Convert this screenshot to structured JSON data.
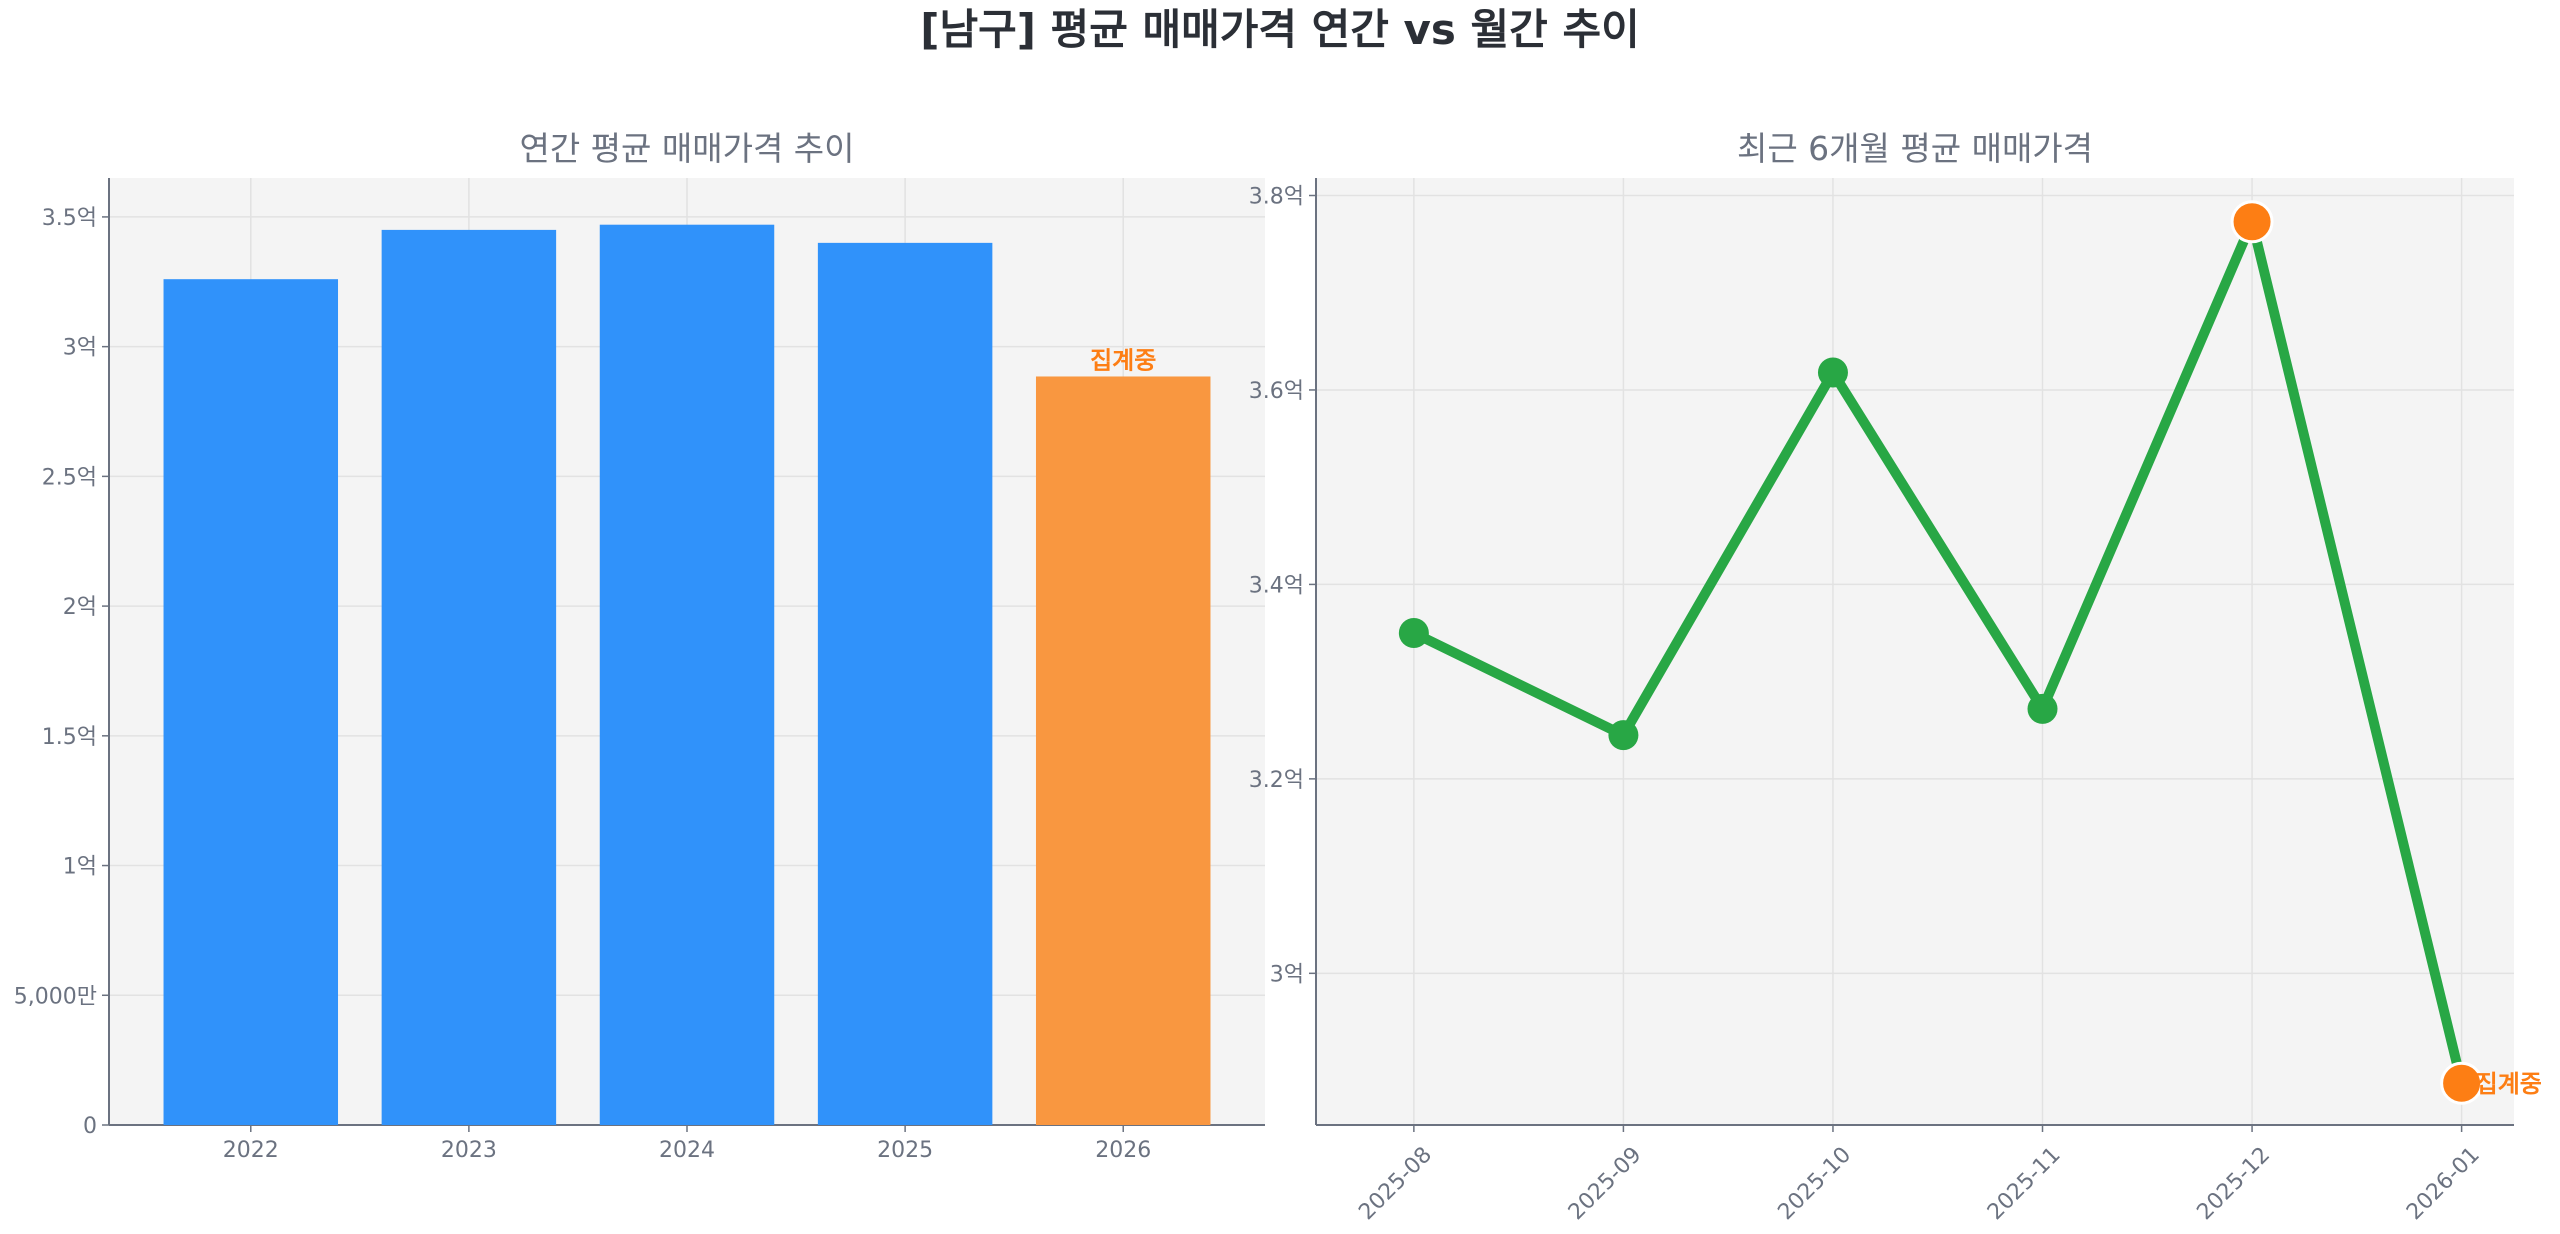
{
  "title": "[남구] 평균 매매가격 연간 vs 월간 추이",
  "chart_data": [
    {
      "type": "bar",
      "title": "연간 평균 매매가격 추이",
      "xlabel": "",
      "ylabel": "",
      "categories": [
        "2022",
        "2023",
        "2024",
        "2025",
        "2026"
      ],
      "values": [
        3.26,
        3.45,
        3.47,
        3.4,
        2.885
      ],
      "unit": "억",
      "ylim": [
        0,
        3.65
      ],
      "yticks": [
        0,
        0.5,
        1,
        1.5,
        2,
        2.5,
        3,
        3.5
      ],
      "ytick_labels": [
        "0",
        "5,000만",
        "1억",
        "1.5억",
        "2억",
        "2.5억",
        "3억",
        "3.5억"
      ],
      "grid": true,
      "colors": {
        "normal": "#3092fa",
        "in_progress": "#f99740"
      },
      "in_progress_index": 4,
      "annotation": "집계중"
    },
    {
      "type": "line",
      "title": "최근 6개월 평균 매매가격",
      "xlabel": "",
      "ylabel": "",
      "categories": [
        "2025-08",
        "2025-09",
        "2025-10",
        "2025-11",
        "2025-12",
        "2026-01"
      ],
      "values": [
        3.35,
        3.245,
        3.618,
        3.272,
        3.773,
        2.887
      ],
      "unit": "억",
      "ylim": [
        2.844,
        3.818
      ],
      "yticks": [
        3.0,
        3.2,
        3.4,
        3.6,
        3.8
      ],
      "ytick_labels": [
        "3억",
        "3.2억",
        "3.4억",
        "3.6억",
        "3.8억"
      ],
      "grid": true,
      "colors": {
        "line": "#28a745",
        "highlight": "#fd7e14"
      },
      "highlight_indices": [
        4,
        5
      ],
      "annotation": "집계중"
    }
  ]
}
